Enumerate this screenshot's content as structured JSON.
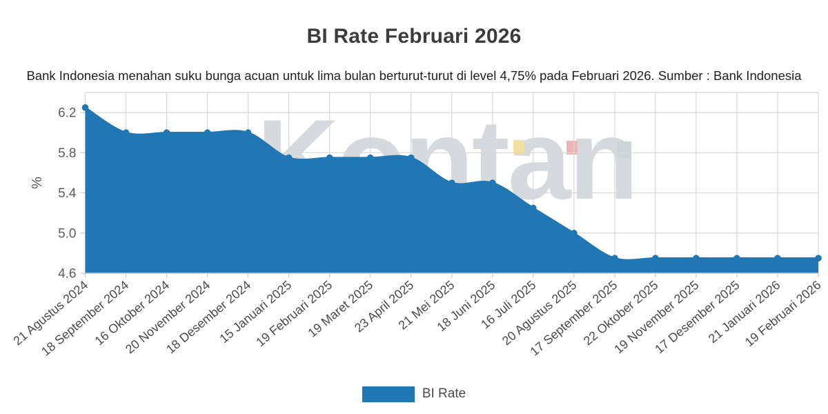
{
  "header": {
    "title": "BI Rate Februari 2026",
    "subtitle": "Bank Indonesia menahan suku bunga acuan untuk lima bulan berturut-turut di level 4,75% pada Februari 2026. Sumber : Bank Indonesia"
  },
  "legend": {
    "label": "BI Rate",
    "position": "bottom-center"
  },
  "watermark": {
    "text": "Kontan",
    "text_color": "#d6dade",
    "square_colors": [
      "#f3e0a0",
      "#ecb6b8",
      "#ced5d9"
    ]
  },
  "chart_data": {
    "type": "area",
    "title": "BI Rate Februari 2026",
    "categories": [
      "21 Agustus 2024",
      "18 September 2024",
      "16 Oktober 2024",
      "20 November 2024",
      "18 Desember 2024",
      "15 Januari 2025",
      "19 Februari 2025",
      "19 Maret 2025",
      "23 April 2025",
      "21 Mei 2025",
      "18 Juni 2025",
      "16 Juli 2025",
      "20 Agustus 2025",
      "17 September 2025",
      "22 Oktober 2025",
      "19 November 2025",
      "17 Desember 2025",
      "21 Januari 2026",
      "19 Februari 2026"
    ],
    "series": [
      {
        "name": "BI Rate",
        "values": [
          6.25,
          6.0,
          6.0,
          6.0,
          6.0,
          5.75,
          5.75,
          5.75,
          5.75,
          5.5,
          5.5,
          5.25,
          5.0,
          4.75,
          4.75,
          4.75,
          4.75,
          4.75,
          4.75
        ]
      }
    ],
    "xlabel": "",
    "ylabel": "%",
    "ylim": [
      4.6,
      6.4
    ],
    "yticks": [
      4.6,
      5.0,
      5.4,
      5.8,
      6.2
    ],
    "grid": true,
    "smoothing": true,
    "legend_position": "bottom",
    "colors": {
      "area": "#2077b4",
      "grid": "#d7d7d7",
      "axis": "#c9c9c9",
      "y_tick_label": "#5c5c5c",
      "x_tick_label": "#4a4a4a",
      "unit_label": "#555555"
    }
  }
}
